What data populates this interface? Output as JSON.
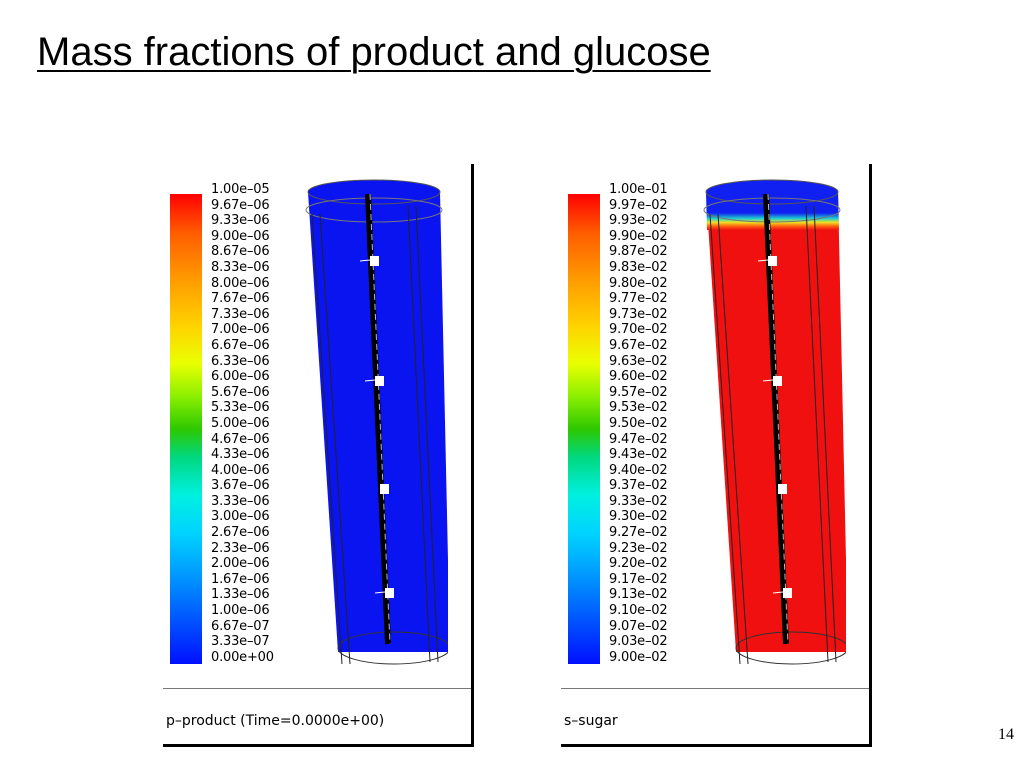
{
  "slide": {
    "title": "Mass fractions of product and glucose",
    "page_number": "14"
  },
  "panels": [
    {
      "caption": "p–product  (Time=0.0000e+00)",
      "contour_field": "blue",
      "colorbar_ticks": [
        "1.00e–05",
        "9.67e–06",
        "9.33e–06",
        "9.00e–06",
        "8.67e–06",
        "8.33e–06",
        "8.00e–06",
        "7.67e–06",
        "7.33e–06",
        "7.00e–06",
        "6.67e–06",
        "6.33e–06",
        "6.00e–06",
        "5.67e–06",
        "5.33e–06",
        "5.00e–06",
        "4.67e–06",
        "4.33e–06",
        "4.00e–06",
        "3.67e–06",
        "3.33e–06",
        "3.00e–06",
        "2.67e–06",
        "2.33e–06",
        "2.00e–06",
        "1.67e–06",
        "1.33e–06",
        "1.00e–06",
        "6.67e–07",
        "3.33e–07",
        "0.00e+00"
      ]
    },
    {
      "caption": "s–sugar",
      "contour_field": "red",
      "colorbar_ticks": [
        "1.00e–01",
        "9.97e–02",
        "9.93e–02",
        "9.90e–02",
        "9.87e–02",
        "9.83e–02",
        "9.80e–02",
        "9.77e–02",
        "9.73e–02",
        "9.70e–02",
        "9.67e–02",
        "9.63e–02",
        "9.60e–02",
        "9.57e–02",
        "9.53e–02",
        "9.50e–02",
        "9.47e–02",
        "9.43e–02",
        "9.40e–02",
        "9.37e–02",
        "9.33e–02",
        "9.30e–02",
        "9.27e–02",
        "9.23e–02",
        "9.20e–02",
        "9.17e–02",
        "9.13e–02",
        "9.10e–02",
        "9.07e–02",
        "9.03e–02",
        "9.00e–02"
      ]
    }
  ],
  "colors": {
    "product_fill": "#0a14f0",
    "sugar_fill": "#f01010",
    "sugar_top_fill": "#1020f0"
  }
}
